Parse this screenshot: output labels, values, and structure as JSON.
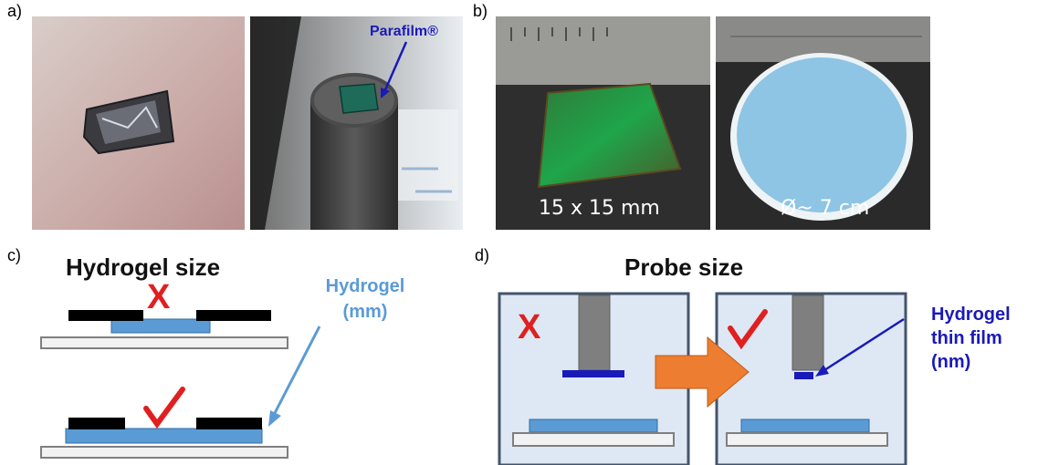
{
  "panels": {
    "a": {
      "letter": "a)",
      "photo2_label": "Parafilm®"
    },
    "b": {
      "letter": "b)",
      "caption_left": "15 x 15 mm",
      "caption_right": "Ø~ 7 cm"
    },
    "c": {
      "letter": "c)",
      "title": "Hydrogel size",
      "hydrogel_label_line1": "Hydrogel",
      "hydrogel_label_line2": "(mm)",
      "wrong_mark": "X"
    },
    "d": {
      "letter": "d)",
      "title": "Probe size",
      "wrong_mark": "X",
      "film_label_line1": "Hydrogel",
      "film_label_line2": "thin film",
      "film_label_line3": "(nm)"
    }
  },
  "colors": {
    "hydrogel": "#5b9bd5",
    "dark_blue": "#1a1ab8",
    "red_mark": "#e02020",
    "arrow_orange": "#ed7d31",
    "box_fill": "#dde8f4",
    "box_border": "#44546a",
    "probe_grey": "#7f7f7f"
  }
}
